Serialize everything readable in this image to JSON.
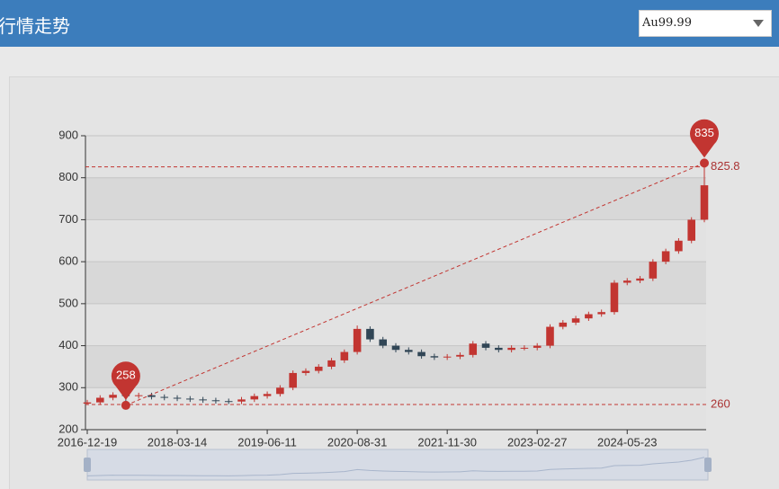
{
  "header": {
    "title": "行情走势",
    "select": "Au99.99"
  },
  "chart_data": {
    "type": "candlestick",
    "categories": [
      "2016-12-19",
      null,
      null,
      null,
      null,
      null,
      null,
      "2018-03-14",
      null,
      null,
      null,
      null,
      null,
      null,
      "2019-06-11",
      null,
      null,
      null,
      null,
      null,
      null,
      "2020-08-31",
      null,
      null,
      null,
      null,
      null,
      null,
      "2021-11-30",
      null,
      null,
      null,
      null,
      null,
      null,
      "2023-02-27",
      null,
      null,
      null,
      null,
      null,
      null,
      "2024-05-23",
      null,
      null,
      null,
      null,
      null,
      null
    ],
    "open": [
      262,
      265,
      276,
      283,
      280,
      282,
      278,
      276,
      274,
      272,
      270,
      268,
      267,
      272,
      280,
      285,
      300,
      335,
      340,
      350,
      365,
      385,
      440,
      415,
      400,
      390,
      385,
      375,
      372,
      374,
      378,
      405,
      395,
      390,
      395,
      395,
      400,
      445,
      455,
      465,
      475,
      480,
      550,
      555,
      560,
      600,
      625,
      650,
      700
    ],
    "close": [
      265,
      276,
      283,
      280,
      282,
      278,
      276,
      274,
      272,
      270,
      268,
      267,
      272,
      280,
      285,
      300,
      335,
      340,
      350,
      365,
      385,
      440,
      415,
      400,
      390,
      385,
      375,
      372,
      374,
      378,
      405,
      395,
      390,
      395,
      395,
      400,
      445,
      455,
      465,
      475,
      480,
      550,
      555,
      560,
      600,
      625,
      650,
      700,
      782
    ],
    "low": [
      259,
      260,
      270,
      258,
      274,
      272,
      270,
      268,
      266,
      264,
      262,
      261,
      261,
      266,
      274,
      279,
      294,
      329,
      334,
      344,
      359,
      379,
      409,
      394,
      384,
      379,
      369,
      366,
      366,
      368,
      372,
      389,
      384,
      384,
      389,
      389,
      394,
      439,
      449,
      459,
      469,
      474,
      544,
      549,
      554,
      594,
      619,
      644,
      694
    ],
    "high": [
      271,
      282,
      289,
      289,
      288,
      288,
      284,
      282,
      280,
      278,
      276,
      274,
      278,
      286,
      291,
      306,
      341,
      346,
      356,
      371,
      391,
      448,
      446,
      421,
      406,
      396,
      391,
      381,
      380,
      384,
      411,
      411,
      401,
      401,
      401,
      406,
      451,
      461,
      471,
      481,
      486,
      556,
      561,
      566,
      606,
      631,
      656,
      706,
      835
    ],
    "up_color": "#c23531",
    "down_color": "#314656",
    "ylim": [
      200,
      900
    ],
    "yticks": [
      200,
      300,
      400,
      500,
      600,
      700,
      800,
      900
    ],
    "mark_lines": [
      825.8,
      260
    ],
    "mark_color": "#c23531",
    "grid": true
  }
}
